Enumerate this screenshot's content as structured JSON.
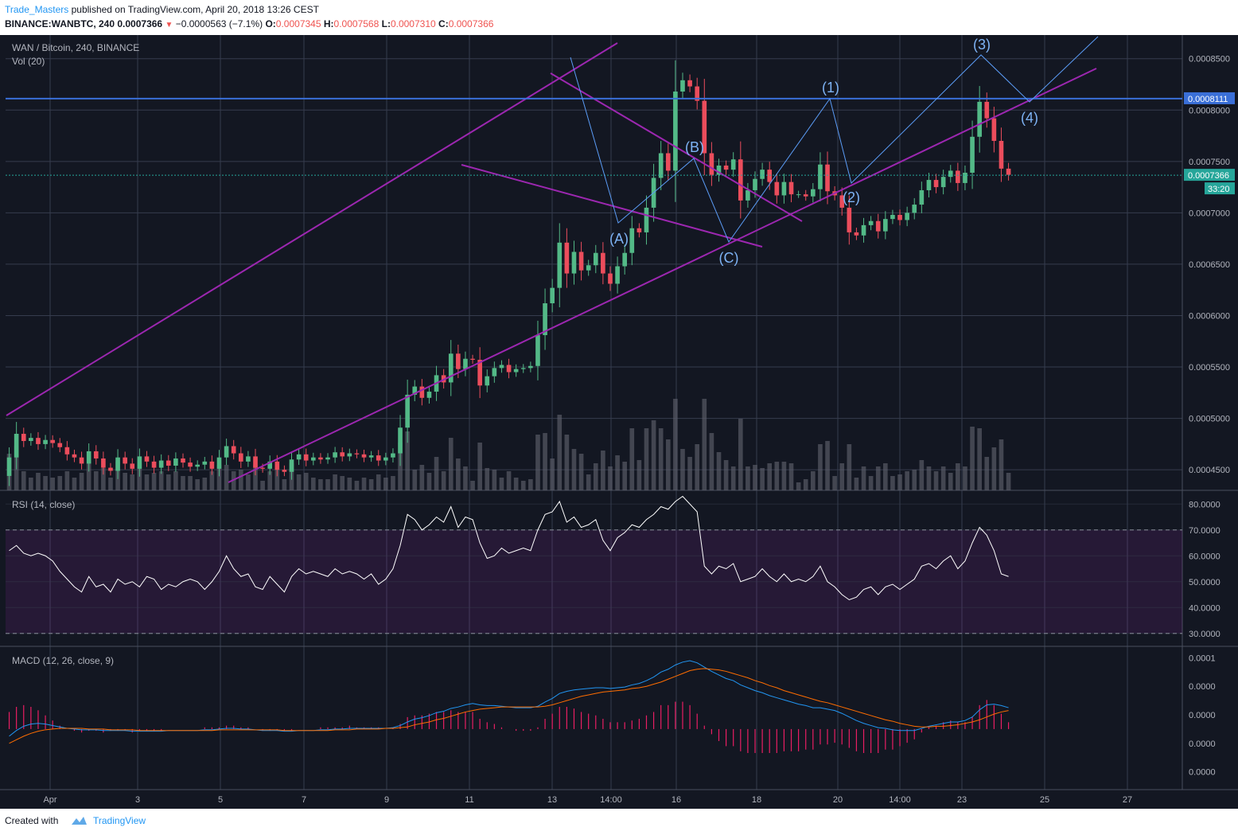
{
  "header": {
    "author": "Trade_Masters",
    "published": "published on TradingView.com, April 20, 2018 13:26 CEST",
    "symbol": "BINANCE:WANBTC, 240",
    "change": "−0.0000563 (−7.1%)",
    "last": "0.0007366",
    "o_label": "O:",
    "o_value": "0.0007345",
    "h_label": "H:",
    "h_value": "0.0007568",
    "l_label": "L:",
    "l_value": "0.0007310",
    "c_label": "C:",
    "c_value": "0.0007366"
  },
  "footer": {
    "created": "Created with",
    "brand": "TradingView"
  },
  "colors": {
    "background": "#131722",
    "grid": "#363c4e",
    "text": "#b2b5be",
    "up": "#53b987",
    "down": "#eb4d5c",
    "trend": "#9c27b0",
    "wave": "#5b9cf6",
    "resistance": "#3a6fd8",
    "rsi": "#ffffff",
    "macd": "#2196f3",
    "signal": "#ff6d00",
    "hist": "#e91e63"
  },
  "chart_data": [
    {
      "type": "candlestick",
      "title": "WAN / Bitcoin, 240, BINANCE",
      "volume_label": "Vol (20)",
      "x_ticks": [
        "Apr",
        "3",
        "5",
        "7",
        "9",
        "11",
        "13",
        "14:00",
        "16",
        "18",
        "20",
        "14:00",
        "23",
        "25",
        "27"
      ],
      "y_ticks": [
        "0.0008500",
        "0.0008000",
        "0.0007500",
        "0.0007000",
        "0.0006500",
        "0.0006000",
        "0.0005500",
        "0.0005000",
        "0.0004500"
      ],
      "y_tick_values": [
        0.00085,
        0.0008,
        0.00075,
        0.0007,
        0.00065,
        0.0006,
        0.00055,
        0.0005,
        0.00045
      ],
      "ylim": [
        0.00043,
        0.000873
      ],
      "price_labels": {
        "resistance": "0.0008111",
        "last": "0.0007366",
        "countdown": "33:20"
      },
      "resistance_level": 0.0008111,
      "last_price": 0.0007366,
      "x_index_range": [
        -0.5,
        162
      ],
      "closes": [
        0.000462,
        0.000485,
        0.000478,
        0.000481,
        0.000475,
        0.000479,
        0.000476,
        0.000472,
        0.000465,
        0.000462,
        0.000456,
        0.000468,
        0.000461,
        0.000452,
        0.000449,
        0.000462,
        0.000456,
        0.000451,
        0.000463,
        0.000458,
        0.000452,
        0.000459,
        0.000454,
        0.000461,
        0.000457,
        0.000453,
        0.000455,
        0.000458,
        0.000451,
        0.000462,
        0.000473,
        0.000466,
        0.000458,
        0.000463,
        0.000452,
        0.000451,
        0.000458,
        0.00045,
        0.000448,
        0.00046,
        0.000465,
        0.000459,
        0.000462,
        0.00046,
        0.000462,
        0.000467,
        0.000463,
        0.000466,
        0.000465,
        0.000462,
        0.000464,
        0.000459,
        0.000462,
        0.000466,
        0.000491,
        0.000523,
        0.000531,
        0.00052,
        0.000526,
        0.000542,
        0.000535,
        0.000563,
        0.000548,
        0.000558,
        0.000557,
        0.000532,
        0.000541,
        0.000549,
        0.000552,
        0.000545,
        0.000548,
        0.000549,
        0.000551,
        0.000581,
        0.000612,
        0.000627,
        0.000671,
        0.000641,
        0.000662,
        0.000644,
        0.000649,
        0.000661,
        0.000641,
        0.000631,
        0.000648,
        0.000661,
        0.000685,
        0.000681,
        0.000705,
        0.000734,
        0.000758,
        0.000741,
        0.000818,
        0.000829,
        0.000823,
        0.000809,
        0.000758,
        0.000737,
        0.000746,
        0.000742,
        0.000752,
        0.000712,
        0.000722,
        0.000733,
        0.000742,
        0.00073,
        0.000717,
        0.00073,
        0.000718,
        0.000718,
        0.000716,
        0.000723,
        0.000747,
        0.000721,
        0.000717,
        0.000705,
        0.000681,
        0.000678,
        0.000688,
        0.000692,
        0.000682,
        0.000694,
        0.000698,
        0.000693,
        0.0007,
        0.000708,
        0.000722,
        0.000732,
        0.000725,
        0.000735,
        0.000741,
        0.000729,
        0.000739,
        0.000774,
        0.000808,
        0.000792,
        0.00077,
        0.000743,
        0.000737
      ],
      "opens_first": 0.000444,
      "volume_ylim": [
        0,
        1
      ],
      "note_volume": "relative volume heights"
    },
    {
      "type": "line",
      "title": "RSI (14, close)",
      "y_ticks": [
        "80.0000",
        "70.0000",
        "60.0000",
        "50.0000",
        "40.0000",
        "30.0000"
      ],
      "y_tick_values": [
        80,
        70,
        60,
        50,
        40,
        30
      ],
      "ylim": [
        25,
        85
      ],
      "band": [
        30,
        70
      ],
      "values": [
        62,
        64,
        61,
        60,
        61,
        60,
        58,
        54,
        51,
        48,
        46,
        52,
        48,
        49,
        46,
        51,
        49,
        50,
        48,
        52,
        51,
        47,
        49,
        48,
        50,
        51,
        50,
        47,
        50,
        54,
        60,
        55,
        52,
        53,
        48,
        47,
        52,
        49,
        46,
        52,
        55,
        53,
        54,
        53,
        52,
        55,
        53,
        54,
        53,
        51,
        53,
        49,
        51,
        55,
        64,
        76,
        74,
        70,
        72,
        75,
        73,
        79,
        71,
        75,
        74,
        65,
        59,
        60,
        63,
        61,
        62,
        63,
        62,
        70,
        76,
        77,
        81,
        73,
        75,
        71,
        72,
        74,
        66,
        62,
        67,
        69,
        72,
        71,
        74,
        76,
        79,
        78,
        81,
        83,
        80,
        77,
        56,
        53,
        56,
        55,
        57,
        50,
        51,
        52,
        55,
        52,
        50,
        53,
        50,
        51,
        50,
        52,
        56,
        50,
        48,
        45,
        43,
        44,
        47,
        48,
        45,
        48,
        49,
        47,
        49,
        51,
        56,
        57,
        55,
        58,
        60,
        55,
        58,
        65,
        71,
        68,
        62,
        53,
        52
      ]
    },
    {
      "type": "line",
      "title": "MACD (12, 26, close, 9)",
      "y_ticks": [
        "0.0001",
        "0.0000",
        "0.0000",
        "0.0000",
        "0.0000"
      ],
      "y_tick_values": [
        0.0001,
        6e-05,
        2e-05,
        -2e-05,
        -6e-05
      ],
      "ylim": [
        -8.5e-05,
        0.000115
      ],
      "series": [
        {
          "name": "MACD",
          "values": [
            -1e-05,
            -2e-06,
            4e-06,
            7e-06,
            8e-06,
            7e-06,
            5e-06,
            3e-06,
            1e-06,
            0.0,
            -1e-06,
            -1e-06,
            -1e-06,
            -2e-06,
            -2e-06,
            -2e-06,
            -2e-06,
            -3e-06,
            -3e-06,
            -3e-06,
            -3e-06,
            -3e-06,
            -2e-06,
            -2e-06,
            -2e-06,
            -2e-06,
            -2e-06,
            -1e-06,
            -1e-06,
            0.0,
            1e-06,
            1e-06,
            0.0,
            0.0,
            -1e-06,
            -2e-06,
            -2e-06,
            -2e-06,
            -3e-06,
            -3e-06,
            -2e-06,
            -2e-06,
            -2e-06,
            -1e-06,
            -1e-06,
            0.0,
            0.0,
            1e-06,
            1e-06,
            1e-06,
            1e-06,
            1e-06,
            1e-06,
            2e-06,
            5e-06,
            1e-05,
            1.4e-05,
            1.6e-05,
            1.9e-05,
            2.3e-05,
            2.5e-05,
            2.9e-05,
            3.1e-05,
            3.4e-05,
            3.6e-05,
            3.4e-05,
            3.3e-05,
            3.3e-05,
            3.2e-05,
            3.1e-05,
            3e-05,
            3e-05,
            3e-05,
            3.2e-05,
            3.8e-05,
            4.3e-05,
            5e-05,
            5.3e-05,
            5.5e-05,
            5.6e-05,
            5.7e-05,
            5.8e-05,
            5.8e-05,
            5.7e-05,
            5.8e-05,
            5.9e-05,
            6.2e-05,
            6.4e-05,
            6.8e-05,
            7.3e-05,
            8e-05,
            8.4e-05,
            9e-05,
            9.4e-05,
            9.6e-05,
            9.3e-05,
            8.7e-05,
            8.1e-05,
            7.6e-05,
            7.1e-05,
            6.8e-05,
            6.2e-05,
            5.8e-05,
            5.4e-05,
            5.1e-05,
            4.7e-05,
            4.4e-05,
            4.1e-05,
            3.8e-05,
            3.5e-05,
            3.3e-05,
            3e-05,
            3e-05,
            2.8e-05,
            2.6e-05,
            2.2e-05,
            1.7e-05,
            1.2e-05,
            8e-06,
            5e-06,
            2e-06,
            1e-06,
            -1e-06,
            -2e-06,
            -2e-06,
            -2e-06,
            1e-06,
            4e-06,
            6e-06,
            8e-06,
            1e-05,
            1e-05,
            1.2e-05,
            1.7e-05,
            2.7e-05,
            3.4e-05,
            3.5e-05,
            3.3e-05,
            3e-05
          ]
        },
        {
          "name": "Signal",
          "values": [
            -2e-05,
            -1.5e-05,
            -1e-05,
            -6e-06,
            -3e-06,
            -1e-06,
            0.0,
            1e-06,
            1e-06,
            1e-06,
            1e-06,
            0.0,
            0.0,
            0.0,
            -1e-06,
            -1e-06,
            -1e-06,
            -1e-06,
            -2e-06,
            -2e-06,
            -2e-06,
            -2e-06,
            -2e-06,
            -2e-06,
            -2e-06,
            -2e-06,
            -2e-06,
            -2e-06,
            -2e-06,
            -1e-06,
            -1e-06,
            -1e-06,
            -1e-06,
            -1e-06,
            -1e-06,
            -1e-06,
            -1e-06,
            -1e-06,
            -2e-06,
            -2e-06,
            -2e-06,
            -2e-06,
            -2e-06,
            -2e-06,
            -2e-06,
            -1e-06,
            -1e-06,
            -1e-06,
            0.0,
            0.0,
            0.0,
            0.0,
            1e-06,
            1e-06,
            2e-06,
            3e-06,
            6e-06,
            8e-06,
            1e-05,
            1.3e-05,
            1.5e-05,
            1.8e-05,
            2.1e-05,
            2.4e-05,
            2.6e-05,
            2.8e-05,
            2.9e-05,
            3e-05,
            3.1e-05,
            3.1e-05,
            3.1e-05,
            3.1e-05,
            3.1e-05,
            3.1e-05,
            3.2e-05,
            3.4e-05,
            3.7e-05,
            4e-05,
            4.3e-05,
            4.6e-05,
            4.8e-05,
            5e-05,
            5.2e-05,
            5.3e-05,
            5.4e-05,
            5.5e-05,
            5.7e-05,
            5.8e-05,
            6e-05,
            6.3e-05,
            6.6e-05,
            7e-05,
            7.4e-05,
            7.8e-05,
            8.2e-05,
            8.4e-05,
            8.5e-05,
            8.4e-05,
            8.3e-05,
            8.1e-05,
            7.8e-05,
            7.5e-05,
            7.2e-05,
            6.8e-05,
            6.5e-05,
            6.1e-05,
            5.8e-05,
            5.4e-05,
            5.1e-05,
            4.8e-05,
            4.5e-05,
            4.2e-05,
            3.9e-05,
            3.7e-05,
            3.4e-05,
            3.1e-05,
            2.8e-05,
            2.5e-05,
            2.2e-05,
            1.9e-05,
            1.6e-05,
            1.3e-05,
            1.1e-05,
            8e-06,
            6e-06,
            4e-06,
            3e-06,
            3e-06,
            4e-06,
            4e-06,
            5e-06,
            6e-06,
            8e-06,
            1e-05,
            1.3e-05,
            1.7e-05,
            2.1e-05,
            2.4e-05,
            2.6e-05
          ]
        }
      ]
    }
  ],
  "annotations": {
    "wave_labels": [
      "(A)",
      "(B)",
      "(C)",
      "(1)",
      "(2)",
      "(3)",
      "(4)"
    ]
  }
}
